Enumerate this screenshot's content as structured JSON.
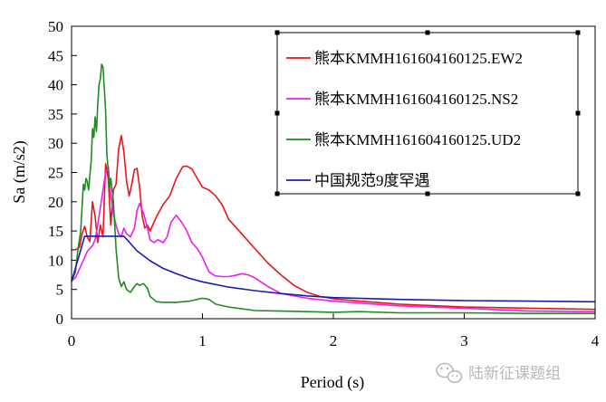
{
  "chart_data": {
    "type": "line",
    "xlabel": "Period (s)",
    "ylabel": "Sa (m/s2)",
    "xlim": [
      0,
      4
    ],
    "ylim": [
      0,
      50
    ],
    "xticks": [
      0,
      1,
      2,
      3,
      4
    ],
    "yticks": [
      0,
      5,
      10,
      15,
      20,
      25,
      30,
      35,
      40,
      45,
      50
    ],
    "grid": false,
    "legend_position": "top-right",
    "series": [
      {
        "name": "熊本KMMH161604160125.EW2",
        "color": "#e8161b",
        "x": [
          0,
          0.03,
          0.06,
          0.08,
          0.1,
          0.12,
          0.14,
          0.16,
          0.18,
          0.2,
          0.22,
          0.24,
          0.26,
          0.28,
          0.3,
          0.32,
          0.34,
          0.36,
          0.38,
          0.4,
          0.42,
          0.44,
          0.46,
          0.48,
          0.5,
          0.52,
          0.54,
          0.56,
          0.58,
          0.6,
          0.62,
          0.65,
          0.7,
          0.75,
          0.8,
          0.85,
          0.88,
          0.92,
          0.96,
          1.0,
          1.05,
          1.1,
          1.15,
          1.2,
          1.3,
          1.4,
          1.5,
          1.6,
          1.7,
          1.8,
          1.9,
          2.0,
          2.2,
          2.5,
          3.0,
          3.5,
          4.0
        ],
        "values": [
          11.8,
          11.8,
          12.2,
          14.5,
          15.8,
          14.0,
          13.2,
          20.0,
          17.5,
          13.0,
          16.0,
          14.0,
          26.5,
          24.0,
          16.0,
          22.0,
          23.0,
          29.0,
          31.3,
          28.5,
          23.5,
          21.0,
          23.0,
          25.5,
          25.7,
          22.5,
          17.5,
          15.5,
          16.0,
          15.0,
          16.0,
          17.5,
          19.5,
          21.0,
          24.0,
          26.0,
          26.1,
          25.6,
          24.0,
          22.5,
          22.0,
          21.0,
          19.5,
          17.0,
          14.5,
          12.0,
          9.5,
          7.5,
          5.7,
          4.5,
          3.8,
          3.4,
          3.0,
          2.5,
          2.0,
          1.8,
          1.6
        ]
      },
      {
        "name": "熊本KMMH161604160125.NS2",
        "color": "#ee1ee8",
        "x": [
          0,
          0.03,
          0.06,
          0.08,
          0.1,
          0.12,
          0.14,
          0.16,
          0.18,
          0.2,
          0.22,
          0.24,
          0.26,
          0.28,
          0.3,
          0.32,
          0.34,
          0.36,
          0.38,
          0.4,
          0.42,
          0.45,
          0.48,
          0.5,
          0.52,
          0.55,
          0.58,
          0.6,
          0.63,
          0.66,
          0.7,
          0.73,
          0.76,
          0.8,
          0.84,
          0.88,
          0.92,
          0.96,
          1.0,
          1.05,
          1.1,
          1.15,
          1.2,
          1.25,
          1.3,
          1.35,
          1.4,
          1.5,
          1.6,
          1.8,
          2.0,
          2.5,
          3.0,
          3.5,
          4.0
        ],
        "values": [
          6.5,
          7.0,
          8.5,
          9.5,
          10.5,
          11.5,
          12.0,
          12.5,
          13.5,
          16.0,
          19.0,
          22.0,
          25.0,
          26.0,
          21.0,
          18.0,
          16.0,
          14.5,
          14.0,
          15.5,
          14.5,
          14.0,
          15.5,
          18.5,
          19.7,
          18.0,
          15.5,
          13.5,
          13.0,
          13.5,
          13.0,
          14.0,
          16.5,
          17.7,
          16.5,
          15.0,
          13.0,
          12.0,
          10.5,
          8.0,
          7.3,
          7.2,
          7.2,
          7.4,
          7.7,
          7.5,
          7.0,
          5.5,
          4.3,
          3.5,
          3.0,
          2.2,
          1.8,
          1.3,
          1.2
        ]
      },
      {
        "name": "熊本KMMH161604160125.UD2",
        "color": "#1e8c1e",
        "x": [
          0,
          0.03,
          0.05,
          0.07,
          0.09,
          0.1,
          0.11,
          0.12,
          0.13,
          0.14,
          0.15,
          0.16,
          0.17,
          0.18,
          0.19,
          0.2,
          0.21,
          0.22,
          0.23,
          0.24,
          0.25,
          0.26,
          0.27,
          0.28,
          0.29,
          0.3,
          0.31,
          0.32,
          0.34,
          0.36,
          0.38,
          0.4,
          0.42,
          0.45,
          0.48,
          0.5,
          0.52,
          0.55,
          0.58,
          0.6,
          0.65,
          0.7,
          0.8,
          0.9,
          1.0,
          1.05,
          1.1,
          1.2,
          1.4,
          1.6,
          1.8,
          2.0,
          2.2,
          2.5,
          3.0,
          3.5,
          4.0
        ],
        "values": [
          6.3,
          8.0,
          12.0,
          15.0,
          23.0,
          22.0,
          24.0,
          23.5,
          22.0,
          24.5,
          27.0,
          32.5,
          31.0,
          34.5,
          32.0,
          36.5,
          40.0,
          41.0,
          43.5,
          43.0,
          39.5,
          35.5,
          28.0,
          25.5,
          22.5,
          24.0,
          22.0,
          20.0,
          12.0,
          7.0,
          5.5,
          6.3,
          5.0,
          4.5,
          5.5,
          6.0,
          5.7,
          6.0,
          5.2,
          3.8,
          2.9,
          2.8,
          2.8,
          3.0,
          3.5,
          3.3,
          2.5,
          2.0,
          1.4,
          1.3,
          1.2,
          1.1,
          1.2,
          1.0,
          1.0,
          0.9,
          0.9
        ]
      },
      {
        "name": "中国规范9度罕遇",
        "color": "#1a1ab4",
        "x": [
          0,
          0.05,
          0.1,
          0.15,
          0.2,
          0.25,
          0.3,
          0.35,
          0.4,
          0.5,
          0.6,
          0.7,
          0.8,
          0.9,
          1.0,
          1.2,
          1.4,
          1.6,
          1.8,
          2.0,
          2.5,
          3.0,
          3.5,
          4.0
        ],
        "values": [
          6.4,
          10.2,
          14.1,
          14.1,
          14.1,
          14.1,
          14.1,
          14.1,
          14.1,
          11.6,
          9.9,
          8.6,
          7.7,
          6.9,
          6.3,
          5.4,
          4.8,
          4.3,
          3.9,
          3.6,
          3.3,
          3.1,
          3.0,
          2.9
        ]
      }
    ]
  },
  "watermark": {
    "icon": "wechat-icon",
    "text": "陆新征课题组"
  }
}
